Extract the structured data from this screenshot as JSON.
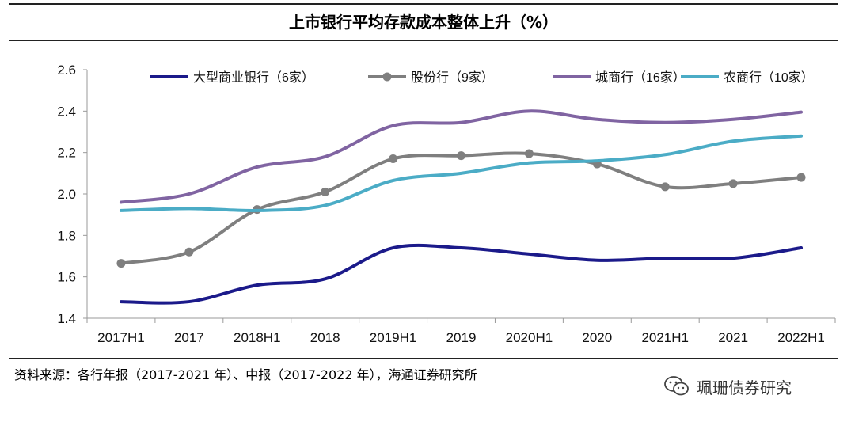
{
  "header": {
    "title": "上市银行平均存款成本整体上升（%）"
  },
  "chart_data": {
    "type": "line",
    "title": "上市银行平均存款成本整体上升（%）",
    "xlabel": "",
    "ylabel": "",
    "categories": [
      "2017H1",
      "2017",
      "2018H1",
      "2018",
      "2019H1",
      "2019",
      "2020H1",
      "2020",
      "2021H1",
      "2021",
      "2022H1"
    ],
    "ylim": [
      1.4,
      2.6
    ],
    "yticks": [
      "1.4",
      "1.6",
      "1.8",
      "2.0",
      "2.2",
      "2.4",
      "2.6"
    ],
    "ytick_values": [
      1.4,
      1.6,
      1.8,
      2.0,
      2.2,
      2.4,
      2.6
    ],
    "legend_position": "top",
    "series": [
      {
        "name": "大型商业银行（6家）",
        "color": "#1b1a8a",
        "markers": false,
        "values": [
          1.48,
          1.48,
          1.56,
          1.59,
          1.74,
          1.74,
          1.71,
          1.68,
          1.69,
          1.69,
          1.74
        ]
      },
      {
        "name": "股份行（9家）",
        "color": "#7f7f7f",
        "markers": true,
        "values": [
          1.665,
          1.72,
          1.925,
          2.01,
          2.17,
          2.185,
          2.195,
          2.145,
          2.035,
          2.05,
          2.08
        ]
      },
      {
        "name": "城商行（16家）",
        "color": "#8064a2",
        "markers": false,
        "values": [
          1.96,
          2.0,
          2.13,
          2.18,
          2.33,
          2.345,
          2.4,
          2.36,
          2.345,
          2.36,
          2.395
        ]
      },
      {
        "name": "农商行（10家）",
        "color": "#4bacc6",
        "markers": false,
        "values": [
          1.92,
          1.93,
          1.92,
          1.945,
          2.065,
          2.1,
          2.15,
          2.16,
          2.19,
          2.255,
          2.28
        ]
      }
    ]
  },
  "footer": {
    "source": "资料来源：各行年报（2017-2021 年）、中报（2017-2022 年），海通证券研究所",
    "watermark": "珮珊债券研究"
  }
}
